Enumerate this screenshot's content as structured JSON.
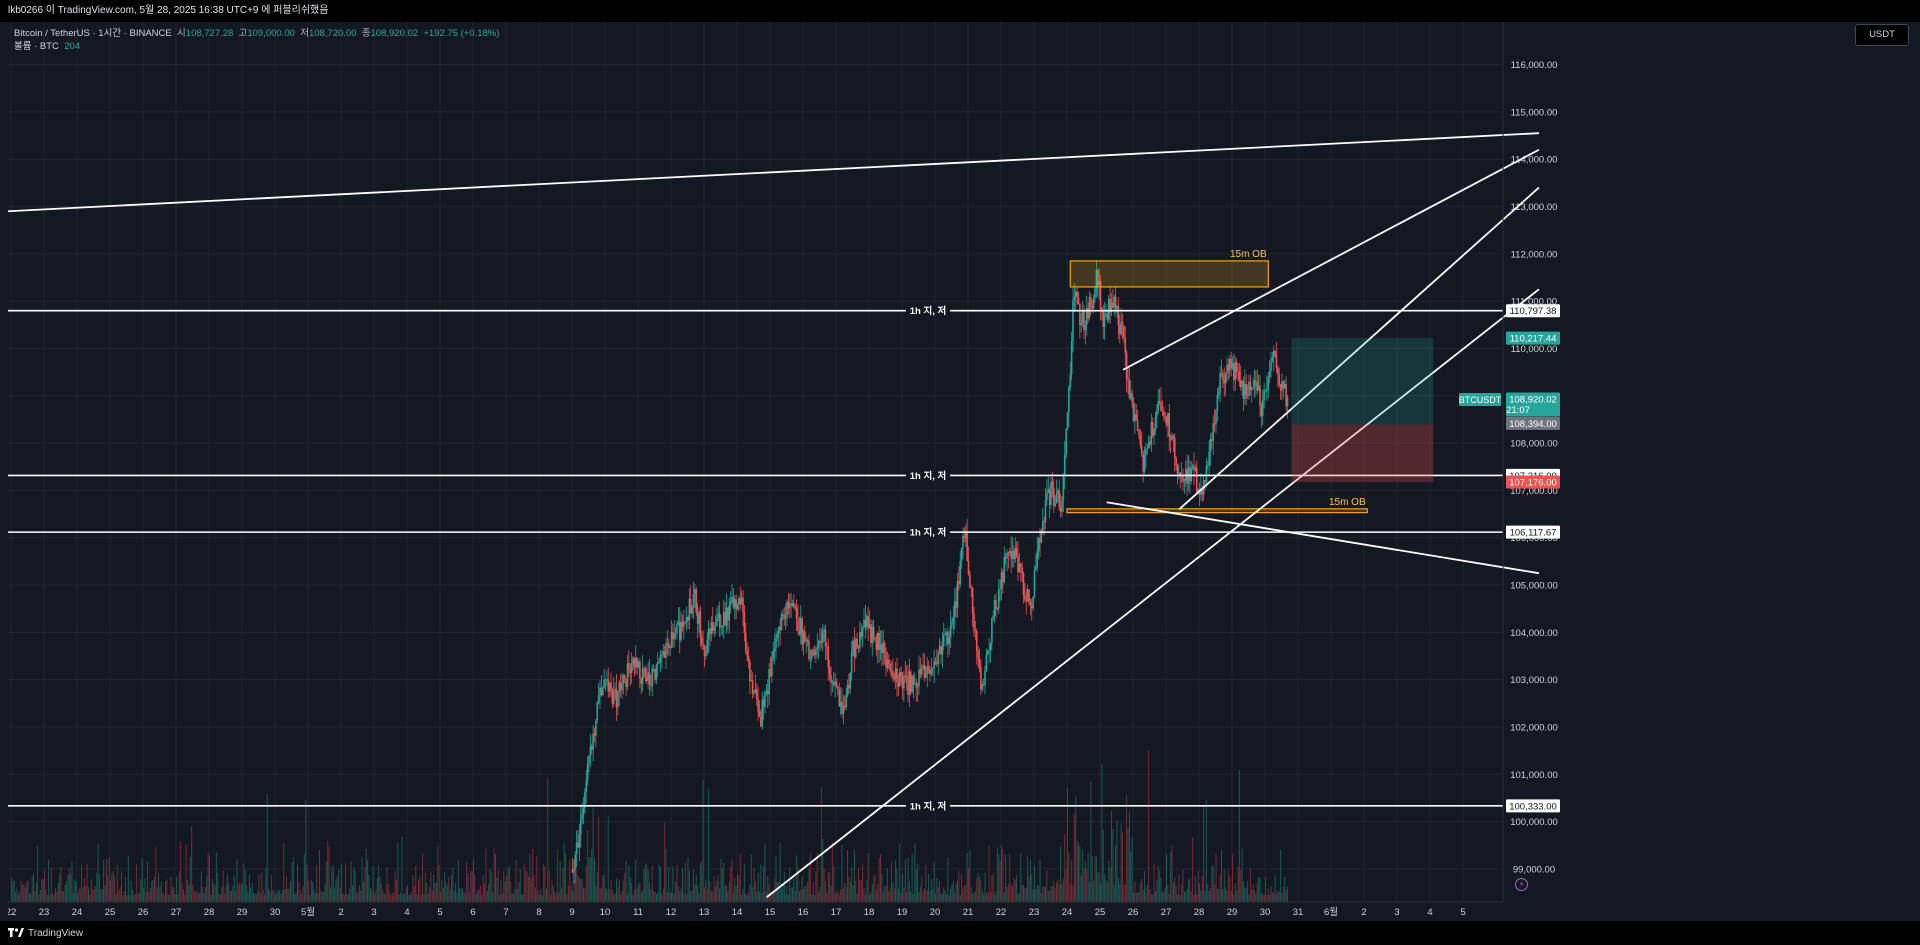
{
  "header": {
    "publish_line": "lkb0266 이 TradingView.com, 5월 28, 2025 16:38 UTC+9 에 퍼블리쉬했음"
  },
  "legend": {
    "symbol": "Bitcoin / TetherUS · 1시간 · BINANCE",
    "open_label": "시",
    "open": "108,727.28",
    "high_label": "고",
    "high": "109,000.00",
    "low_label": "저",
    "low": "108,720.00",
    "close_label": "종",
    "close": "108,920.02",
    "change": "+192.75 (+0.18%)",
    "volume_label": "볼륨 · BTC",
    "volume": "204"
  },
  "currency": "USDT",
  "footer": {
    "brand": "TradingView"
  },
  "colors": {
    "bg": "#141822",
    "grid": "#1f2430",
    "up": "#26a69a",
    "down": "#ef5350",
    "line": "#ffffff",
    "ob": "#f7a21b",
    "axis_text": "#d1d4dc"
  },
  "chart_data": {
    "type": "candlestick",
    "symbol": "BTCUSDT",
    "timeframe": "1시간",
    "x_ticks": [
      "22",
      "23",
      "24",
      "25",
      "26",
      "27",
      "28",
      "29",
      "30",
      "5월",
      "2",
      "3",
      "4",
      "5",
      "6",
      "7",
      "8",
      "9",
      "10",
      "11",
      "12",
      "13",
      "14",
      "15",
      "16",
      "17",
      "18",
      "19",
      "20",
      "21",
      "22",
      "23",
      "24",
      "25",
      "26",
      "27",
      "28",
      "29",
      "30",
      "31",
      "6월",
      "2",
      "3",
      "4",
      "5"
    ],
    "y_ticks": [
      99000,
      100000,
      101000,
      102000,
      103000,
      104000,
      105000,
      106000,
      107000,
      108000,
      109000,
      110000,
      111000,
      112000,
      113000,
      114000,
      115000,
      116000
    ],
    "y_tick_labels": [
      "99,000.00",
      "100,000.00",
      "101,000.00",
      "102,000.00",
      "103,000.00",
      "104,000.00",
      "105,000.00",
      "106,000.00",
      "107,000.00",
      "108,000.00",
      "109,000.00",
      "110,000.00",
      "111,000.00",
      "112,000.00",
      "113,000.00",
      "114,000.00",
      "115,000.00",
      "116,000.00"
    ],
    "ylim": [
      98300,
      116900
    ],
    "close_path": [
      {
        "d": 17.0,
        "p": 99000
      },
      {
        "d": 17.3,
        "p": 100200
      },
      {
        "d": 17.6,
        "p": 101800
      },
      {
        "d": 17.9,
        "p": 102900
      },
      {
        "d": 18.3,
        "p": 102600
      },
      {
        "d": 18.8,
        "p": 103300
      },
      {
        "d": 19.3,
        "p": 102900
      },
      {
        "d": 19.8,
        "p": 103700
      },
      {
        "d": 20.3,
        "p": 104100
      },
      {
        "d": 20.7,
        "p": 104700
      },
      {
        "d": 21.0,
        "p": 103600
      },
      {
        "d": 21.3,
        "p": 104300
      },
      {
        "d": 21.7,
        "p": 104400
      },
      {
        "d": 22.1,
        "p": 104700
      },
      {
        "d": 22.4,
        "p": 103000
      },
      {
        "d": 22.7,
        "p": 102200
      },
      {
        "d": 23.0,
        "p": 103200
      },
      {
        "d": 23.3,
        "p": 104300
      },
      {
        "d": 23.6,
        "p": 104700
      },
      {
        "d": 23.9,
        "p": 104100
      },
      {
        "d": 24.2,
        "p": 103500
      },
      {
        "d": 24.6,
        "p": 103900
      },
      {
        "d": 24.9,
        "p": 102900
      },
      {
        "d": 25.2,
        "p": 102200
      },
      {
        "d": 25.5,
        "p": 103600
      },
      {
        "d": 25.9,
        "p": 104200
      },
      {
        "d": 26.3,
        "p": 103700
      },
      {
        "d": 26.7,
        "p": 103200
      },
      {
        "d": 27.1,
        "p": 102900
      },
      {
        "d": 27.5,
        "p": 103000
      },
      {
        "d": 27.9,
        "p": 103300
      },
      {
        "d": 28.3,
        "p": 103800
      },
      {
        "d": 28.6,
        "p": 104500
      },
      {
        "d": 28.9,
        "p": 106200
      },
      {
        "d": 29.1,
        "p": 104600
      },
      {
        "d": 29.4,
        "p": 102700
      },
      {
        "d": 29.7,
        "p": 104100
      },
      {
        "d": 30.0,
        "p": 105200
      },
      {
        "d": 30.3,
        "p": 105800
      },
      {
        "d": 30.6,
        "p": 105100
      },
      {
        "d": 30.9,
        "p": 104600
      },
      {
        "d": 31.2,
        "p": 106300
      },
      {
        "d": 31.5,
        "p": 107000
      },
      {
        "d": 31.8,
        "p": 106700
      },
      {
        "d": 32.0,
        "p": 108600
      },
      {
        "d": 32.2,
        "p": 111200
      },
      {
        "d": 32.4,
        "p": 110500
      },
      {
        "d": 32.7,
        "p": 110900
      },
      {
        "d": 32.9,
        "p": 111500
      },
      {
        "d": 33.1,
        "p": 110600
      },
      {
        "d": 33.4,
        "p": 111000
      },
      {
        "d": 33.7,
        "p": 110200
      },
      {
        "d": 33.9,
        "p": 108900
      },
      {
        "d": 34.1,
        "p": 108300
      },
      {
        "d": 34.3,
        "p": 107400
      },
      {
        "d": 34.6,
        "p": 108400
      },
      {
        "d": 34.8,
        "p": 108900
      },
      {
        "d": 35.0,
        "p": 108600
      },
      {
        "d": 35.2,
        "p": 107900
      },
      {
        "d": 35.5,
        "p": 107200
      },
      {
        "d": 35.8,
        "p": 107500
      },
      {
        "d": 36.0,
        "p": 106900
      },
      {
        "d": 36.2,
        "p": 107300
      },
      {
        "d": 36.4,
        "p": 108300
      },
      {
        "d": 36.6,
        "p": 109300
      },
      {
        "d": 36.9,
        "p": 109700
      },
      {
        "d": 37.2,
        "p": 109400
      },
      {
        "d": 37.4,
        "p": 109000
      },
      {
        "d": 37.7,
        "p": 109500
      },
      {
        "d": 37.9,
        "p": 108600
      },
      {
        "d": 38.1,
        "p": 109600
      },
      {
        "d": 38.3,
        "p": 109900
      },
      {
        "d": 38.5,
        "p": 109100
      },
      {
        "d": 38.7,
        "p": 108920
      }
    ],
    "horizontal_levels": [
      {
        "price": 110797.38,
        "label": "1h 지, 저",
        "axis_label": "110,797.38"
      },
      {
        "price": 107316.0,
        "label": "1h 지, 저",
        "axis_label": "107,316.00"
      },
      {
        "price": 106117.67,
        "label": "1h 지, 저",
        "axis_label": "106,117.67"
      },
      {
        "price": 100333.0,
        "label": "1h 지, 저",
        "axis_label": "100,333.00"
      }
    ],
    "order_blocks": [
      {
        "label": "15m OB",
        "d0": 32.1,
        "d1": 38.1,
        "p_low": 111300,
        "p_high": 111850
      },
      {
        "label": "15m OB",
        "d0": 32.0,
        "d1": 41.1,
        "p_low": 106530,
        "p_high": 106610
      }
    ],
    "trend_lines": [
      {
        "d0": -0.1,
        "p0": 112900,
        "d1": 46.3,
        "p1": 114550
      },
      {
        "d0": 33.7,
        "p0": 109550,
        "d1": 46.3,
        "p1": 114200
      },
      {
        "d0": 35.4,
        "p0": 106600,
        "d1": 46.3,
        "p1": 113400
      },
      {
        "d0": 22.9,
        "p0": 98400,
        "d1": 46.3,
        "p1": 111250
      },
      {
        "d0": 33.2,
        "p0": 106750,
        "d1": 46.3,
        "p1": 105250
      }
    ],
    "position": {
      "d0": 38.8,
      "d1": 43.1,
      "target": 110217.44,
      "entry": 108394.0,
      "stop": 107176.0,
      "target_label": "110,217.44",
      "entry_label": "108,394.00",
      "stop_label": "107,176.00"
    },
    "last_price": {
      "price": 108920.02,
      "label": "108,920.02",
      "countdown": "21:07",
      "ticker": "BTCUSDT"
    }
  }
}
